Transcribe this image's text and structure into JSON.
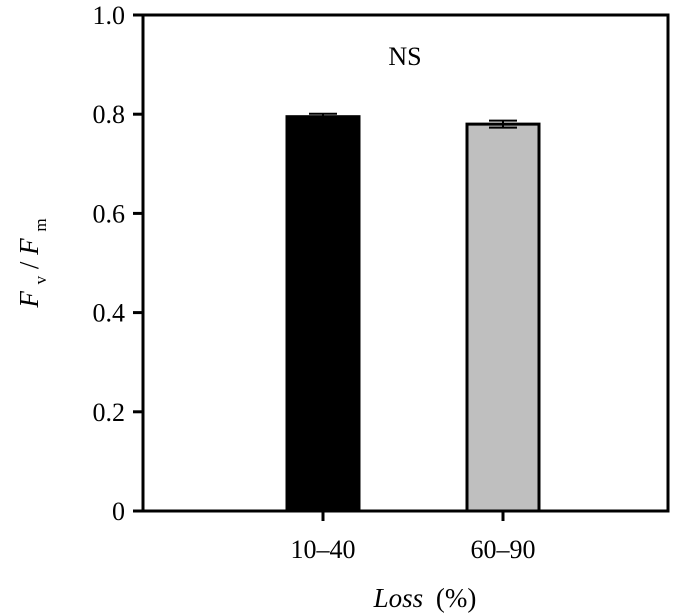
{
  "chart_data": {
    "type": "bar",
    "categories": [
      "10–40",
      "60–90"
    ],
    "values": [
      0.795,
      0.78
    ],
    "errors": [
      0.006,
      0.007
    ],
    "colors": [
      "#000000",
      "#bfbfbf"
    ],
    "xlabel": {
      "main": "Loss",
      "unit": "(%)"
    },
    "ylabel": {
      "f1": "F",
      "sub1": "v",
      "slash": "/",
      "f2": "F",
      "sub2": "m"
    },
    "ylim": [
      0,
      1.0
    ],
    "yticks": [
      0,
      0.2,
      0.4,
      0.6,
      0.8,
      1.0
    ],
    "ytick_labels": [
      "0",
      "0.2",
      "0.4",
      "0.6",
      "0.8",
      "1.0"
    ],
    "annotation": "NS",
    "grid": false,
    "legend": "none"
  }
}
